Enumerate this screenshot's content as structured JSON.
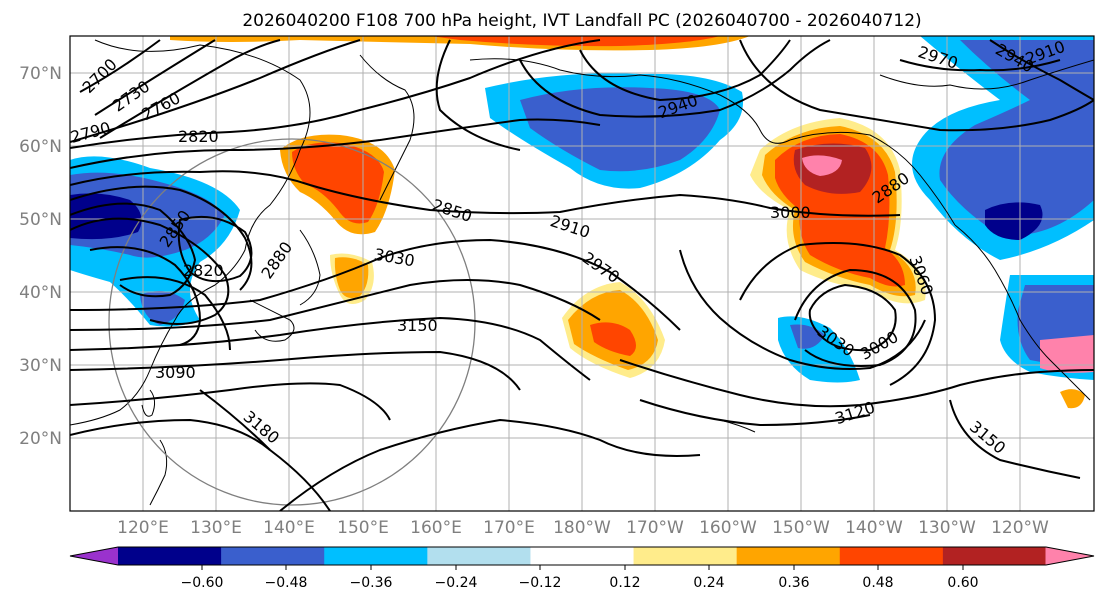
{
  "title": "2026040200 F108 700 hPa height, IVT Landfall PC (2026040700 - 2026040712)",
  "lat_labels": [
    "70°N",
    "60°N",
    "50°N",
    "40°N",
    "30°N",
    "20°N"
  ],
  "lon_labels": [
    "120°E",
    "130°E",
    "140°E",
    "150°E",
    "160°E",
    "170°E",
    "180°W",
    "170°W",
    "160°W",
    "150°W",
    "140°W",
    "130°W",
    "120°W"
  ],
  "colorbar": {
    "ticks": [
      "−0.60",
      "−0.48",
      "−0.36",
      "−0.24",
      "−0.12",
      "0.12",
      "0.24",
      "0.36",
      "0.48",
      "0.60"
    ],
    "colors": [
      "#9a32cd",
      "#00008b",
      "#3a5fcd",
      "#00bfff",
      "#b2dfee",
      "#ffffff",
      "#ffec8b",
      "#ffa500",
      "#ff4500",
      "#b22222",
      "#ff82ab"
    ]
  },
  "contour_labels": [
    "2700",
    "2730",
    "2760",
    "2790",
    "2820",
    "2850",
    "2820",
    "2880",
    "2850",
    "3030",
    "2910",
    "2940",
    "2970",
    "3150",
    "3090",
    "3180",
    "3000",
    "2880",
    "3060",
    "3000",
    "3030",
    "3120",
    "3150",
    "2970",
    "2940",
    "2910"
  ]
}
